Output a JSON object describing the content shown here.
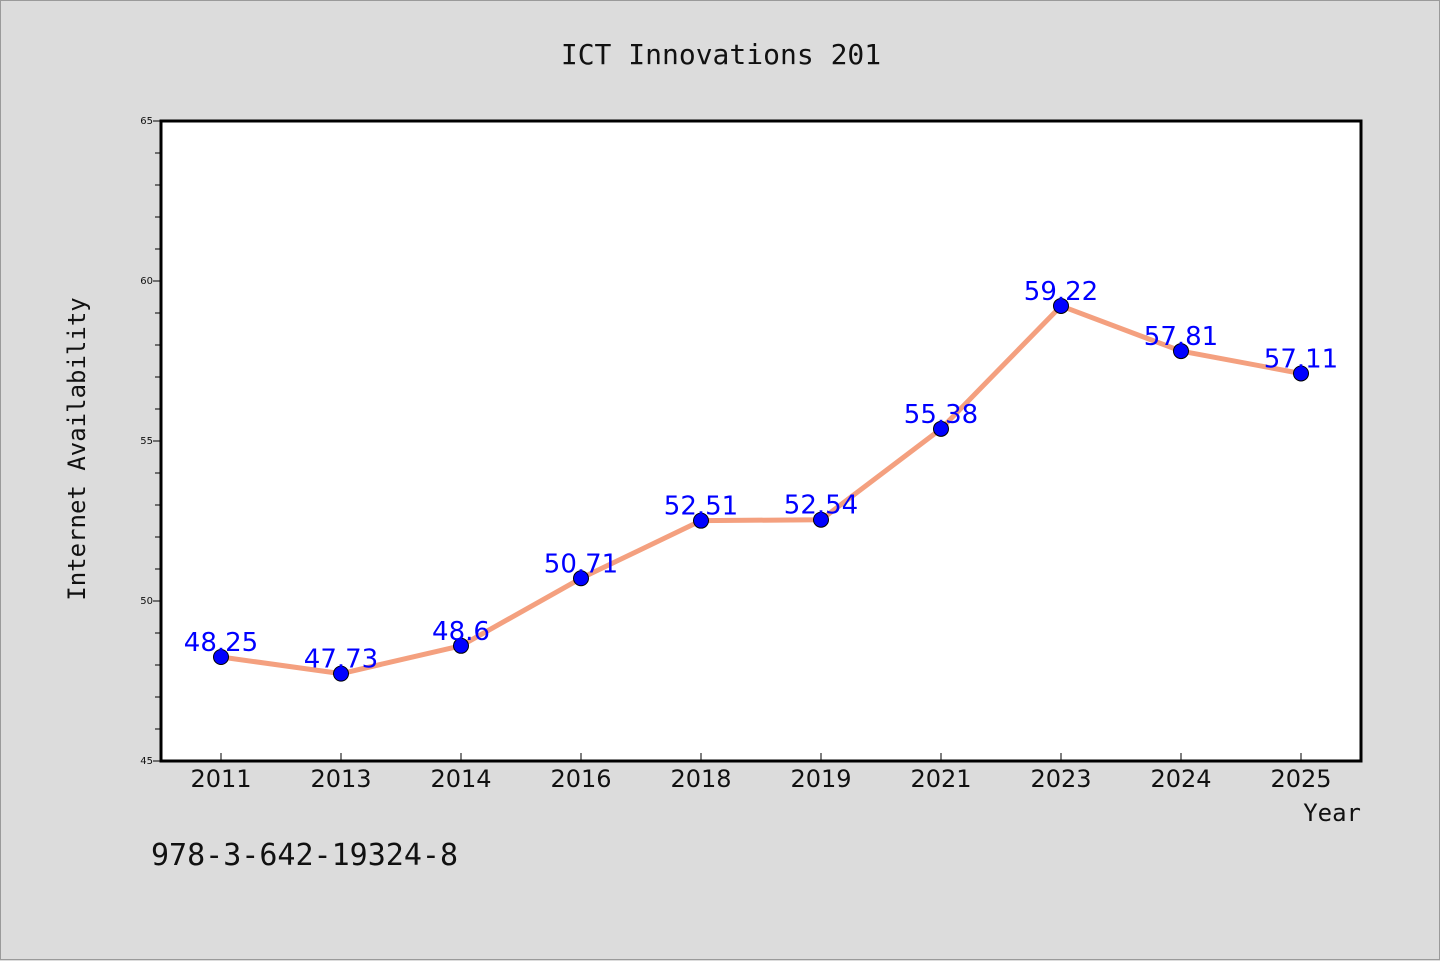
{
  "chart_data": {
    "type": "line",
    "title": "ICT Innovations 201",
    "xlabel": "Year",
    "ylabel": "Internet Availability",
    "categories": [
      "2011",
      "2013",
      "2014",
      "2016",
      "2018",
      "2019",
      "2021",
      "2023",
      "2024",
      "2025"
    ],
    "series": [
      {
        "values": [
          48.25,
          47.73,
          48.6,
          50.71,
          52.51,
          52.54,
          55.38,
          59.22,
          57.81,
          57.11
        ],
        "labels": [
          "48.25",
          "47.73",
          "48.6",
          "50.71",
          "52.51",
          "52.54",
          "55.38",
          "59.22",
          "57.81",
          "57.11"
        ]
      }
    ],
    "ylim": [
      45,
      65
    ],
    "yticks": [
      45,
      50,
      55,
      60,
      65
    ],
    "grid": false,
    "legend": "none",
    "colors": {
      "line": "#f4a07f",
      "marker": "#0000ff",
      "label": "#0000ff",
      "frame": "#000000",
      "background": "#dcdcdc"
    }
  },
  "footer": {
    "text": "978-3-642-19324-8"
  }
}
